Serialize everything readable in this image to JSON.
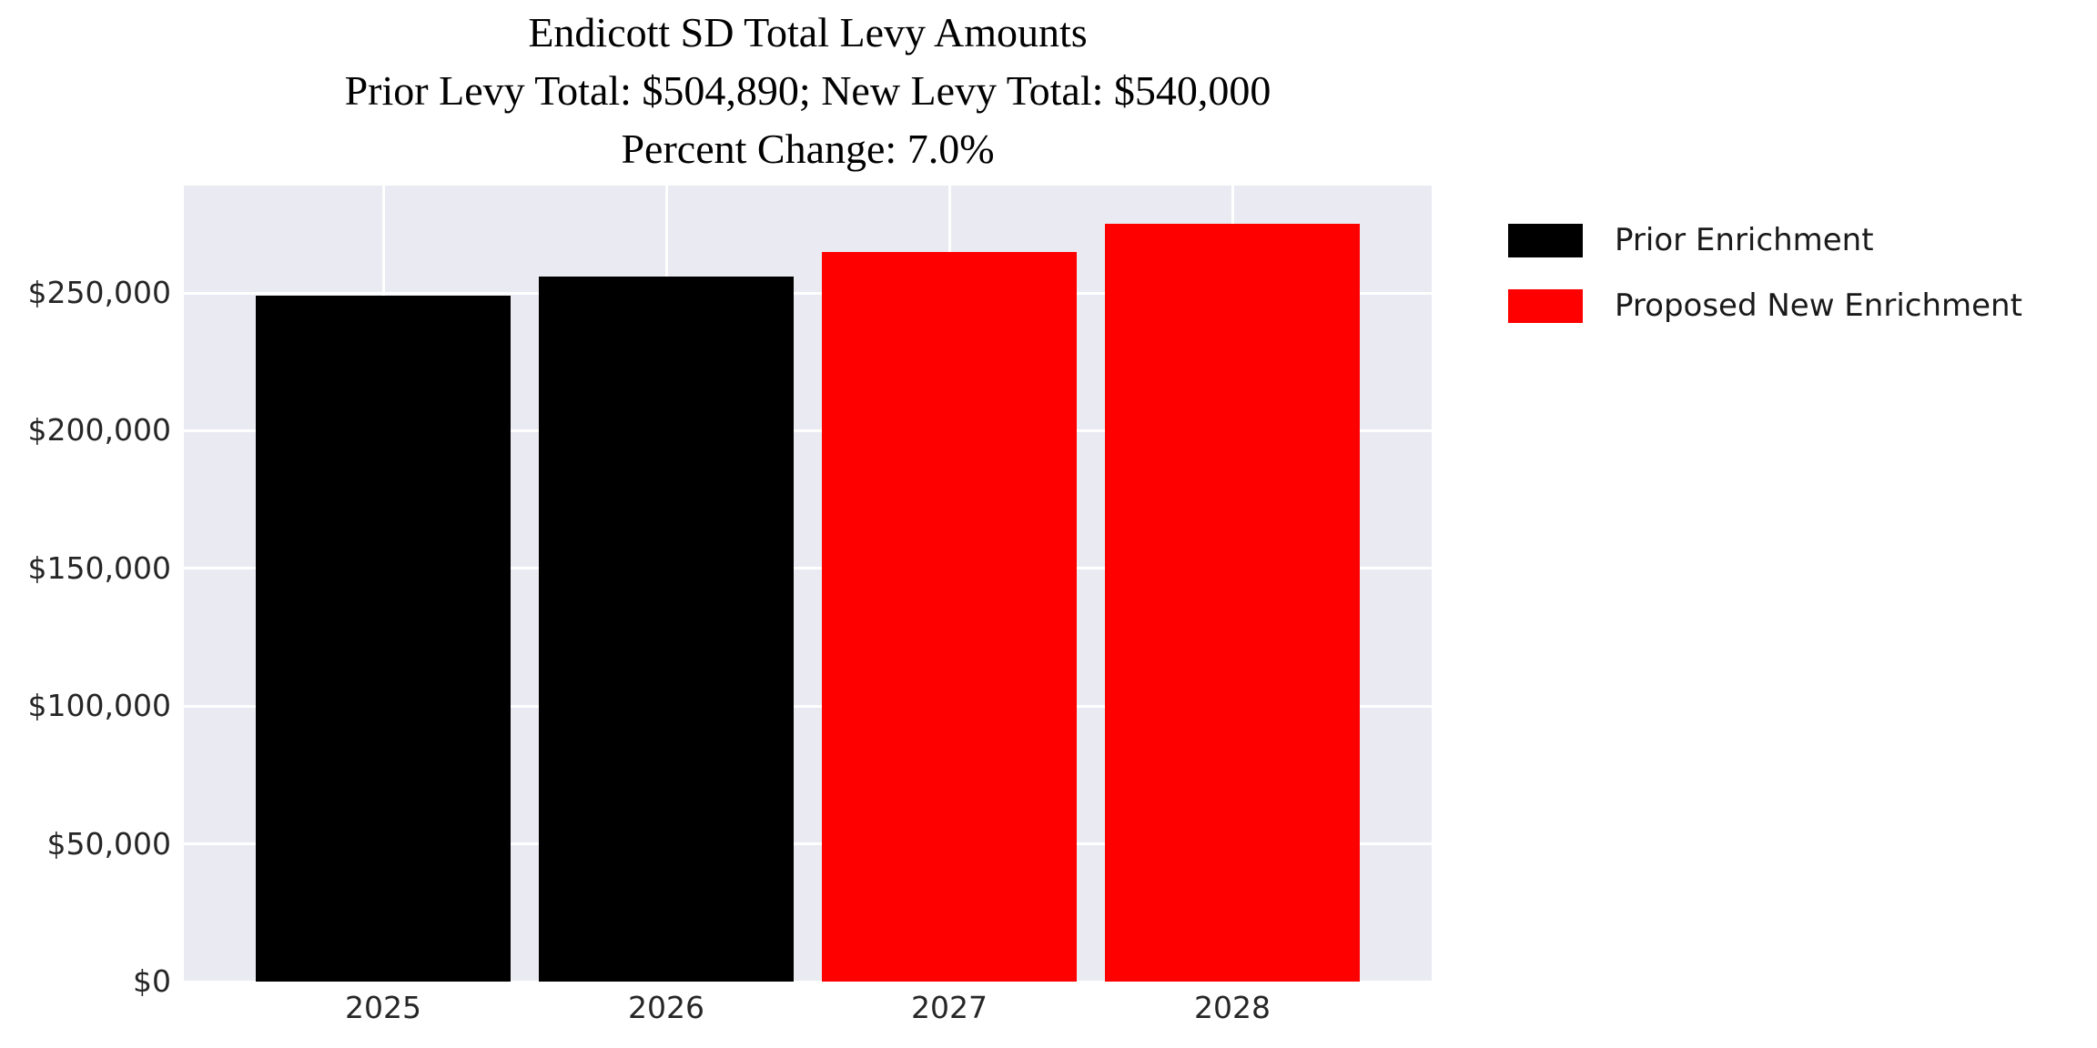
{
  "title": {
    "line1": "Endicott SD Total Levy Amounts",
    "line2": "Prior Levy Total:  $504,890; New Levy Total: $540,000",
    "line3": "Percent Change: 7.0%"
  },
  "colors": {
    "prior": "#000000",
    "proposed": "#ff0000",
    "plot_background": "#eaeaf2",
    "gridline": "#ffffff",
    "tick_text": "#262626",
    "title_text": "#000000"
  },
  "chart_data": {
    "type": "bar",
    "title": "Endicott SD Total Levy Amounts",
    "subtitle": "Prior Levy Total:  $504,890; New Levy Total: $540,000 | Percent Change: 7.0%",
    "categories": [
      "2025",
      "2026",
      "2027",
      "2028"
    ],
    "bars": [
      {
        "year": "2025",
        "value": 249000,
        "series": "Prior Enrichment",
        "color": "#000000"
      },
      {
        "year": "2026",
        "value": 255890,
        "series": "Prior Enrichment",
        "color": "#000000"
      },
      {
        "year": "2027",
        "value": 265000,
        "series": "Proposed New Enrichment",
        "color": "#ff0000"
      },
      {
        "year": "2028",
        "value": 275000,
        "series": "Proposed New Enrichment",
        "color": "#ff0000"
      }
    ],
    "prior_levy_total": 504890,
    "new_levy_total": 540000,
    "percent_change": "7.0%",
    "ylabel": "",
    "xlabel": "",
    "ylim": [
      0,
      289000
    ],
    "yticks": [
      {
        "value": 0,
        "label": "$0"
      },
      {
        "value": 50000,
        "label": "$50,000"
      },
      {
        "value": 100000,
        "label": "$100,000"
      },
      {
        "value": 150000,
        "label": "$150,000"
      },
      {
        "value": 200000,
        "label": "$200,000"
      },
      {
        "value": 250000,
        "label": "$250,000"
      }
    ],
    "grid": true,
    "legend_position": "outside-top-right",
    "legend": [
      {
        "label": "Prior Enrichment",
        "color": "#000000"
      },
      {
        "label": "Proposed New Enrichment",
        "color": "#ff0000"
      }
    ]
  }
}
